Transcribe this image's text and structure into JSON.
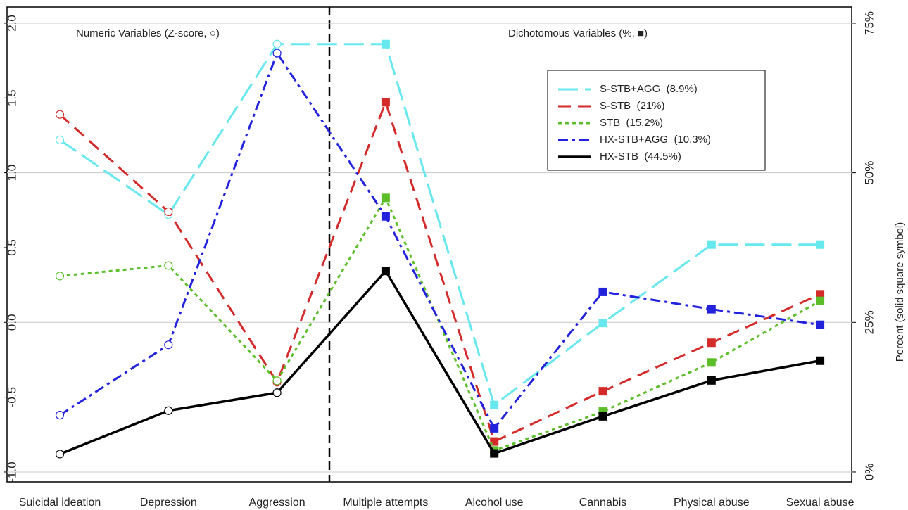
{
  "chart_data": {
    "type": "line",
    "annotations": [
      "Numeric Variables (Z-score, ○)",
      "Dichotomous Variables (%, ■)"
    ],
    "y2_label": "Percent (solid square symbol)",
    "categories": [
      "Suicidal ideation",
      "Depression",
      "Aggression",
      "Multiple attempts",
      "Alcohol use",
      "Cannabis",
      "Physical abuse",
      "Sexual abuse"
    ],
    "ylim": [
      -1.066,
      2.108
    ],
    "yticks": [
      {
        "value": -1,
        "label": "-1.0"
      },
      {
        "value": -0.5,
        "label": "-0.5"
      },
      {
        "value": 0,
        "label": "0.0"
      },
      {
        "value": 0.5,
        "label": "0.5"
      },
      {
        "value": 1,
        "label": "1.0"
      },
      {
        "value": 1.5,
        "label": "1.5"
      },
      {
        "value": 2,
        "label": "2.0"
      }
    ],
    "y2lim": [
      -1.65,
      77.7
    ],
    "y2ticks": [
      {
        "value": 0,
        "label": "0%"
      },
      {
        "value": 25,
        "label": "25%"
      },
      {
        "value": 50,
        "label": "50%"
      },
      {
        "value": 75,
        "label": "75%"
      }
    ],
    "grid": true,
    "series": [
      {
        "name": "S-STB+AGG  (8.9%)",
        "color": "#66e8ee",
        "values": [
          1.22,
          0.72,
          1.86,
          null,
          null,
          null,
          null,
          null
        ],
        "y2_values": [
          null,
          null,
          null,
          71.5,
          11.2,
          24.9,
          38.0,
          38.0
        ]
      },
      {
        "name": "S-STB  (21%)",
        "color": "#d42a2a",
        "values": [
          1.39,
          0.74,
          -0.4,
          null,
          null,
          null,
          null,
          null
        ],
        "y2_values": [
          null,
          null,
          null,
          61.8,
          5.1,
          13.5,
          21.6,
          29.7
        ]
      },
      {
        "name": "STB  (15.2%)",
        "color": "#5cbf2a",
        "values": [
          0.31,
          0.38,
          -0.39,
          null,
          null,
          null,
          null,
          null
        ],
        "y2_values": [
          null,
          null,
          null,
          45.8,
          3.6,
          10.1,
          18.3,
          28.6
        ]
      },
      {
        "name": "HX-STB+AGG  (10.3%)",
        "color": "#2222dd",
        "values": [
          -0.62,
          -0.15,
          1.8,
          null,
          null,
          null,
          null,
          null
        ],
        "y2_values": [
          null,
          null,
          null,
          42.7,
          7.3,
          30.1,
          27.2,
          24.6
        ]
      },
      {
        "name": "HX-STB  (44.5%)",
        "color": "#000000",
        "values": [
          -0.88,
          -0.59,
          -0.47,
          null,
          null,
          null,
          null,
          null
        ],
        "y2_values": [
          null,
          null,
          null,
          33.6,
          3.1,
          9.3,
          15.3,
          18.6
        ]
      }
    ]
  }
}
